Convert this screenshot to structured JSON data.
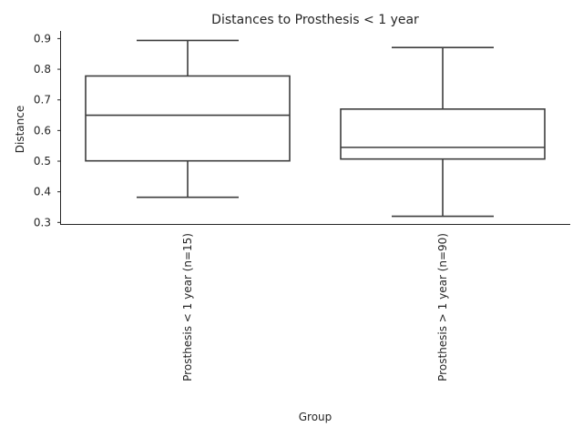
{
  "chart_data": {
    "type": "box",
    "title": "Distances to Prosthesis < 1 year",
    "xlabel": "Group",
    "ylabel": "Distance",
    "ylim": [
      0.295,
      0.925
    ],
    "yticks": [
      0.3,
      0.4,
      0.5,
      0.6,
      0.7,
      0.8,
      0.9
    ],
    "ytick_labels": [
      "0.3",
      "0.4",
      "0.5",
      "0.6",
      "0.7",
      "0.8",
      "0.9"
    ],
    "grid": false,
    "categories": [
      "Prosthesis < 1 year (n=15)",
      "Prosthesis > 1 year (n=90)"
    ],
    "boxes": [
      {
        "category": "Prosthesis < 1 year (n=15)",
        "whisker_low": 0.382,
        "q1": 0.501,
        "median": 0.65,
        "q3": 0.778,
        "whisker_high": 0.894
      },
      {
        "category": "Prosthesis > 1 year (n=90)",
        "whisker_low": 0.32,
        "q1": 0.507,
        "median": 0.545,
        "q3": 0.67,
        "whisker_high": 0.871
      }
    ]
  }
}
